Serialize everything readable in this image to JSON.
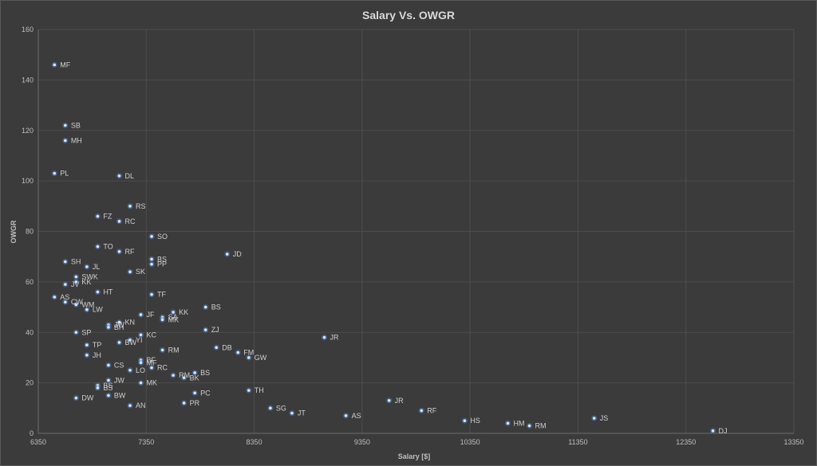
{
  "chart_data": {
    "type": "scatter",
    "title": "Salary Vs. OWGR",
    "xlabel": "Salary [$]",
    "ylabel": "OWGR",
    "xlim": [
      6350,
      13350
    ],
    "ylim": [
      0,
      160
    ],
    "xticks": [
      6350,
      7350,
      8350,
      9350,
      10350,
      11350,
      12350,
      13350
    ],
    "yticks": [
      0,
      20,
      40,
      60,
      80,
      100,
      120,
      140,
      160
    ],
    "grid": true,
    "legend": "none",
    "marker_color": "#9dc3e6",
    "series": [
      {
        "points": [
          {
            "label": "MF",
            "x": 6500,
            "y": 146
          },
          {
            "label": "SB",
            "x": 6600,
            "y": 122
          },
          {
            "label": "MH",
            "x": 6600,
            "y": 116
          },
          {
            "label": "PL",
            "x": 6500,
            "y": 103
          },
          {
            "label": "DL",
            "x": 7100,
            "y": 102
          },
          {
            "label": "RS",
            "x": 7200,
            "y": 90
          },
          {
            "label": "FZ",
            "x": 6900,
            "y": 86
          },
          {
            "label": "RC",
            "x": 7100,
            "y": 84
          },
          {
            "label": "SO",
            "x": 7400,
            "y": 78
          },
          {
            "label": "TO",
            "x": 6900,
            "y": 74
          },
          {
            "label": "RF",
            "x": 7100,
            "y": 72
          },
          {
            "label": "JD",
            "x": 8100,
            "y": 71
          },
          {
            "label": "BS",
            "x": 7400,
            "y": 69
          },
          {
            "label": "PP",
            "x": 7400,
            "y": 67
          },
          {
            "label": "SH",
            "x": 6600,
            "y": 68
          },
          {
            "label": "JL",
            "x": 6800,
            "y": 66
          },
          {
            "label": "SK",
            "x": 7200,
            "y": 64
          },
          {
            "label": "SWK",
            "x": 6700,
            "y": 62
          },
          {
            "label": "KK",
            "x": 6700,
            "y": 60
          },
          {
            "label": "JV",
            "x": 6600,
            "y": 59
          },
          {
            "label": "HT",
            "x": 6900,
            "y": 56
          },
          {
            "label": "TF",
            "x": 7400,
            "y": 55
          },
          {
            "label": "AS",
            "x": 6500,
            "y": 54
          },
          {
            "label": "CW",
            "x": 6600,
            "y": 52
          },
          {
            "label": "WM",
            "x": 6700,
            "y": 51
          },
          {
            "label": "LW",
            "x": 6800,
            "y": 49
          },
          {
            "label": "BS",
            "x": 7900,
            "y": 50
          },
          {
            "label": "KN",
            "x": 7100,
            "y": 44
          },
          {
            "label": "JF",
            "x": 7300,
            "y": 47
          },
          {
            "label": "KK",
            "x": 7600,
            "y": 48
          },
          {
            "label": "SA",
            "x": 7500,
            "y": 46
          },
          {
            "label": "MK",
            "x": 7500,
            "y": 45
          },
          {
            "label": "JW",
            "x": 7000,
            "y": 43
          },
          {
            "label": "BH",
            "x": 7000,
            "y": 42
          },
          {
            "label": "ZJ",
            "x": 7900,
            "y": 41
          },
          {
            "label": "SP",
            "x": 6700,
            "y": 40
          },
          {
            "label": "KC",
            "x": 7300,
            "y": 39
          },
          {
            "label": "JR",
            "x": 9000,
            "y": 38
          },
          {
            "label": "YI",
            "x": 7200,
            "y": 37
          },
          {
            "label": "BW",
            "x": 7100,
            "y": 36
          },
          {
            "label": "TP",
            "x": 6800,
            "y": 35
          },
          {
            "label": "DB",
            "x": 8000,
            "y": 34
          },
          {
            "label": "RM",
            "x": 7500,
            "y": 33
          },
          {
            "label": "FM",
            "x": 8200,
            "y": 32
          },
          {
            "label": "JH",
            "x": 6800,
            "y": 31
          },
          {
            "label": "GW",
            "x": 8300,
            "y": 30
          },
          {
            "label": "BF",
            "x": 7300,
            "y": 29
          },
          {
            "label": "MF",
            "x": 7300,
            "y": 28
          },
          {
            "label": "CS",
            "x": 7000,
            "y": 27
          },
          {
            "label": "RC",
            "x": 7400,
            "y": 26
          },
          {
            "label": "LO",
            "x": 7200,
            "y": 25
          },
          {
            "label": "BS",
            "x": 7800,
            "y": 24
          },
          {
            "label": "RM",
            "x": 7600,
            "y": 23
          },
          {
            "label": "BK",
            "x": 7700,
            "y": 22
          },
          {
            "label": "JW",
            "x": 7000,
            "y": 21
          },
          {
            "label": "MK",
            "x": 7300,
            "y": 20
          },
          {
            "label": "BS",
            "x": 6900,
            "y": 19
          },
          {
            "label": "BS",
            "x": 6900,
            "y": 18
          },
          {
            "label": "TH",
            "x": 8300,
            "y": 17
          },
          {
            "label": "PC",
            "x": 7800,
            "y": 16
          },
          {
            "label": "BW",
            "x": 7000,
            "y": 15
          },
          {
            "label": "DW",
            "x": 6700,
            "y": 14
          },
          {
            "label": "JR",
            "x": 9600,
            "y": 13
          },
          {
            "label": "PR",
            "x": 7700,
            "y": 12
          },
          {
            "label": "AN",
            "x": 7200,
            "y": 11
          },
          {
            "label": "SG",
            "x": 8500,
            "y": 10
          },
          {
            "label": "RF",
            "x": 9900,
            "y": 9
          },
          {
            "label": "JT",
            "x": 8700,
            "y": 8
          },
          {
            "label": "AS",
            "x": 9200,
            "y": 7
          },
          {
            "label": "JS",
            "x": 11500,
            "y": 6
          },
          {
            "label": "HS",
            "x": 10300,
            "y": 5
          },
          {
            "label": "HM",
            "x": 10700,
            "y": 4
          },
          {
            "label": "RM",
            "x": 10900,
            "y": 3
          },
          {
            "label": "DJ",
            "x": 12600,
            "y": 1
          }
        ]
      }
    ]
  }
}
